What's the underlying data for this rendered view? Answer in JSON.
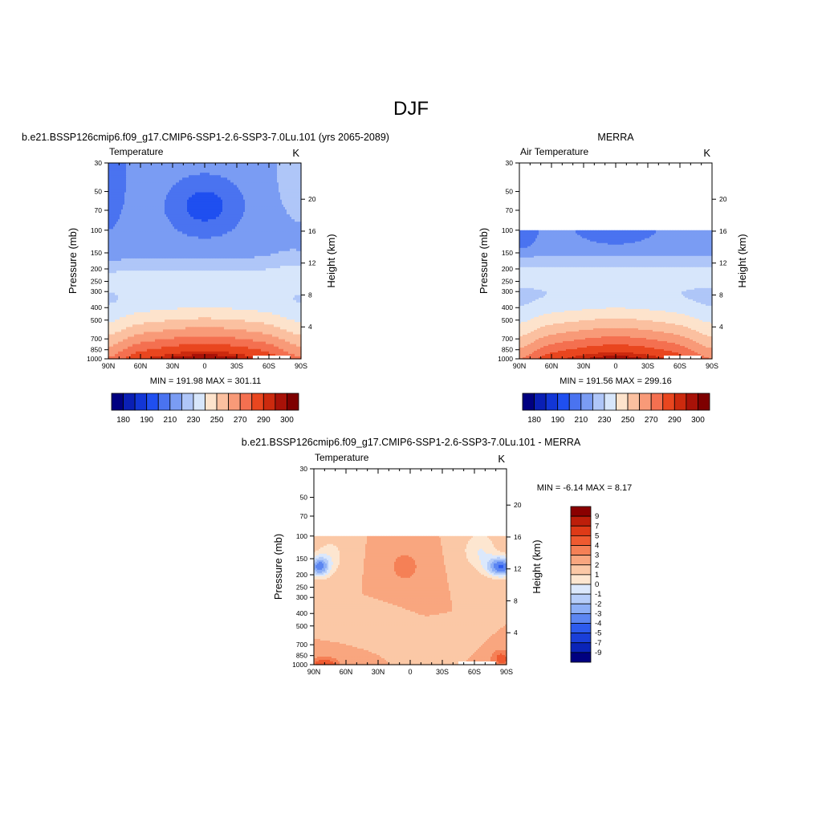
{
  "page_title": "DJF",
  "levels_y": [
    30,
    50,
    70,
    100,
    150,
    200,
    250,
    300,
    400,
    500,
    700,
    850,
    1000
  ],
  "lat_labels": [
    "90N",
    "60N",
    "30N",
    "0",
    "30S",
    "60S",
    "90S"
  ],
  "height_labels": [
    "4",
    "8",
    "12",
    "16",
    "20"
  ],
  "temp_palette": [
    "#000080",
    "#0a1fb5",
    "#1236d6",
    "#1f4ff0",
    "#4a73f0",
    "#7a9cf3",
    "#afc6f8",
    "#d7e6fb",
    "#fde3cc",
    "#fbc0a0",
    "#f89a78",
    "#f47050",
    "#e9461f",
    "#cc2a0e",
    "#a81208",
    "#7e0000"
  ],
  "diff_palette": [
    "#000080",
    "#0a24b8",
    "#1a3fd9",
    "#2d5bee",
    "#5c86f2",
    "#8daff6",
    "#b6cdf9",
    "#dbe8fc",
    "#fde6d0",
    "#fbc8a6",
    "#f9a67f",
    "#f58056",
    "#ef5a30",
    "#de3a17",
    "#bd1e0a",
    "#8a0000"
  ],
  "chart_data": [
    {
      "type": "contour",
      "title": "b.e21.BSSP126cmip6.f09_g17.CMIP6-SSP1-2.6-SSP3-7.0Lu.101 (yrs 2065-2089)",
      "left_label": "Temperature",
      "units": "K",
      "ylabel": "Pressure (mb)",
      "y2label": "Height (km)",
      "x_range": [
        90,
        -90
      ],
      "y_range": [
        30,
        1000
      ],
      "stats": "MIN = 191.98   MAX = 301.11",
      "min": 191.98,
      "max": 301.11,
      "colorbar_labels": [
        "180",
        "190",
        "210",
        "230",
        "250",
        "270",
        "290",
        "300"
      ]
    },
    {
      "type": "contour",
      "title": "MERRA",
      "left_label": "Air Temperature",
      "units": "K",
      "ylabel": "Pressure (mb)",
      "y2label": "Height (km)",
      "x_range": [
        90,
        -90
      ],
      "y_range": [
        30,
        1000
      ],
      "data_top_pressure": 100,
      "stats": "MIN = 191.56   MAX = 299.16",
      "min": 191.56,
      "max": 299.16,
      "colorbar_labels": [
        "180",
        "190",
        "210",
        "230",
        "250",
        "270",
        "290",
        "300"
      ]
    },
    {
      "type": "contour",
      "title": "b.e21.BSSP126cmip6.f09_g17.CMIP6-SSP1-2.6-SSP3-7.0Lu.101 - MERRA",
      "left_label": "Temperature",
      "units": "K",
      "ylabel": "Pressure (mb)",
      "y2label": "Height (km)",
      "x_range": [
        90,
        -90
      ],
      "y_range": [
        30,
        1000
      ],
      "data_top_pressure": 100,
      "stats": "MIN =  -6.14   MAX =   8.17",
      "min": -6.14,
      "max": 8.17,
      "colorbar_labels": [
        "9",
        "7",
        "5",
        "4",
        "3",
        "2",
        "1",
        "0",
        "-1",
        "-2",
        "-3",
        "-4",
        "-5",
        "-7",
        "-9"
      ]
    }
  ]
}
